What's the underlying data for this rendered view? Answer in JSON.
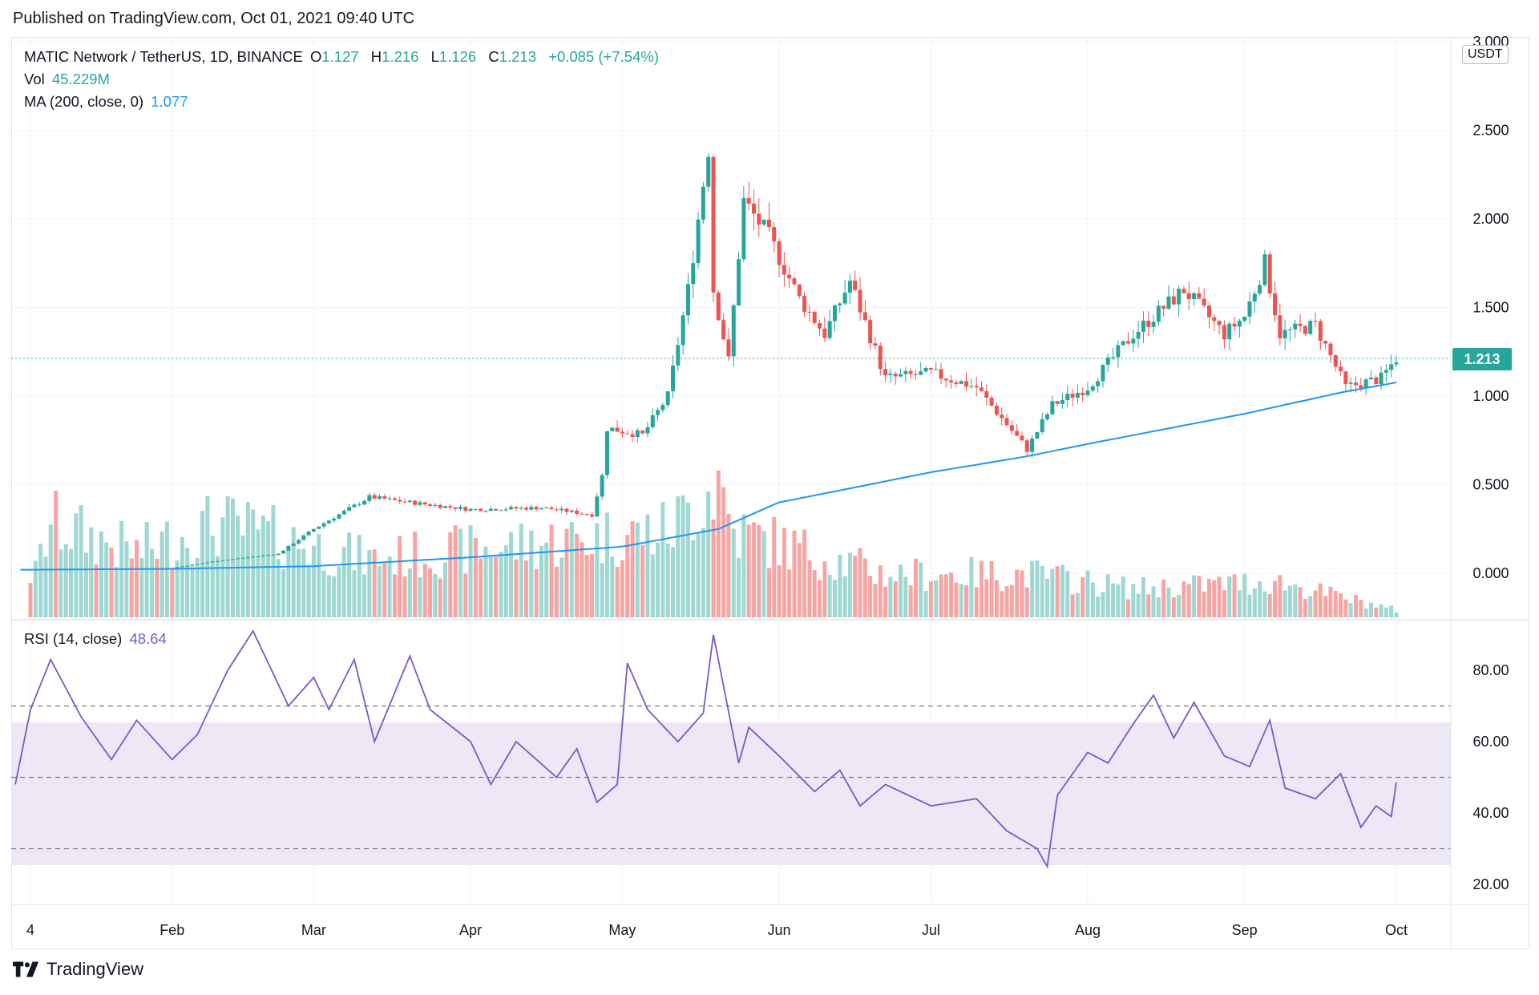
{
  "published": "Published on TradingView.com, Oct 01, 2021 09:40 UTC",
  "legend": {
    "symbol": "MATIC Network / TetherUS, 1D, BINANCE",
    "o_label": "O",
    "o_val": "1.127",
    "h_label": "H",
    "h_val": "1.216",
    "l_label": "L",
    "l_val": "1.126",
    "c_label": "C",
    "c_val": "1.213",
    "change": "+0.085 (+7.54%)",
    "vol_label": "Vol",
    "vol_val": "45.229M",
    "ma_label": "MA (200, close, 0)",
    "ma_val": "1.077",
    "rsi_label": "RSI (14, close)",
    "rsi_val": "48.64"
  },
  "price_axis": {
    "currency": "USDT",
    "ticks": [
      "3.000",
      "2.500",
      "2.000",
      "1.500",
      "1.000",
      "0.500",
      "0.000"
    ],
    "last_price": "1.213"
  },
  "rsi_axis": {
    "ticks": [
      "80.00",
      "60.00",
      "40.00",
      "20.00"
    ]
  },
  "time_axis": {
    "labels": [
      "4",
      "Feb",
      "Mar",
      "Apr",
      "May",
      "Jun",
      "Jul",
      "Aug",
      "Sep",
      "Oct"
    ]
  },
  "brand": "TradingView",
  "colors": {
    "up": "#26a69a",
    "down": "#ef5350",
    "ma": "#2196f3",
    "rsi": "#7e57c2",
    "rsi_band": "#ede7f6"
  },
  "chart_data": [
    {
      "type": "candlestick",
      "title": "MATIC Network / TetherUS, 1D, BINANCE",
      "ylim": [
        0,
        3.0
      ],
      "x_range": [
        "2021-01-04",
        "2021-10-01"
      ],
      "price_path": [
        {
          "date": "2021-01-04",
          "close": 0.02
        },
        {
          "date": "2021-02-01",
          "close": 0.03
        },
        {
          "date": "2021-02-10",
          "close": 0.07
        },
        {
          "date": "2021-02-22",
          "close": 0.11
        },
        {
          "date": "2021-03-01",
          "close": 0.25
        },
        {
          "date": "2021-03-12",
          "close": 0.43
        },
        {
          "date": "2021-03-20",
          "close": 0.4
        },
        {
          "date": "2021-04-01",
          "close": 0.36
        },
        {
          "date": "2021-04-15",
          "close": 0.37
        },
        {
          "date": "2021-04-25",
          "close": 0.33
        },
        {
          "date": "2021-04-27",
          "close": 0.55
        },
        {
          "date": "2021-04-28",
          "close": 0.82
        },
        {
          "date": "2021-05-05",
          "close": 0.78
        },
        {
          "date": "2021-05-10",
          "close": 1.0
        },
        {
          "date": "2021-05-14",
          "close": 1.6
        },
        {
          "date": "2021-05-18",
          "close": 2.4
        },
        {
          "date": "2021-05-19",
          "close": 1.6
        },
        {
          "date": "2021-05-22",
          "close": 1.2
        },
        {
          "date": "2021-05-25",
          "close": 2.1
        },
        {
          "date": "2021-05-30",
          "close": 1.9
        },
        {
          "date": "2021-06-05",
          "close": 1.55
        },
        {
          "date": "2021-06-10",
          "close": 1.35
        },
        {
          "date": "2021-06-15",
          "close": 1.65
        },
        {
          "date": "2021-06-22",
          "close": 1.1
        },
        {
          "date": "2021-07-01",
          "close": 1.13
        },
        {
          "date": "2021-07-10",
          "close": 1.05
        },
        {
          "date": "2021-07-20",
          "close": 0.7
        },
        {
          "date": "2021-07-25",
          "close": 0.95
        },
        {
          "date": "2021-08-01",
          "close": 1.05
        },
        {
          "date": "2021-08-10",
          "close": 1.35
        },
        {
          "date": "2021-08-14",
          "close": 1.45
        },
        {
          "date": "2021-08-20",
          "close": 1.6
        },
        {
          "date": "2021-08-28",
          "close": 1.35
        },
        {
          "date": "2021-09-01",
          "close": 1.45
        },
        {
          "date": "2021-09-05",
          "close": 1.75
        },
        {
          "date": "2021-09-08",
          "close": 1.35
        },
        {
          "date": "2021-09-15",
          "close": 1.4
        },
        {
          "date": "2021-09-21",
          "close": 1.05
        },
        {
          "date": "2021-09-28",
          "close": 1.1
        },
        {
          "date": "2021-10-01",
          "close": 1.213
        }
      ],
      "ma200": [
        {
          "date": "2021-01-04",
          "value": 0.02
        },
        {
          "date": "2021-02-01",
          "value": 0.025
        },
        {
          "date": "2021-03-01",
          "value": 0.04
        },
        {
          "date": "2021-04-01",
          "value": 0.09
        },
        {
          "date": "2021-05-01",
          "value": 0.15
        },
        {
          "date": "2021-05-20",
          "value": 0.25
        },
        {
          "date": "2021-06-01",
          "value": 0.4
        },
        {
          "date": "2021-07-01",
          "value": 0.57
        },
        {
          "date": "2021-07-20",
          "value": 0.66
        },
        {
          "date": "2021-08-01",
          "value": 0.73
        },
        {
          "date": "2021-09-01",
          "value": 0.9
        },
        {
          "date": "2021-09-20",
          "value": 1.02
        },
        {
          "date": "2021-10-01",
          "value": 1.077
        }
      ],
      "volume_relative": [
        {
          "date": "2021-01-05",
          "value": 0.3
        },
        {
          "date": "2021-01-08",
          "value": 0.65
        },
        {
          "date": "2021-01-25",
          "value": 0.45
        },
        {
          "date": "2021-02-10",
          "value": 0.65
        },
        {
          "date": "2021-03-12",
          "value": 0.4
        },
        {
          "date": "2021-04-25",
          "value": 0.55
        },
        {
          "date": "2021-05-10",
          "value": 0.6
        },
        {
          "date": "2021-05-20",
          "value": 0.95
        },
        {
          "date": "2021-05-23",
          "value": 0.6
        },
        {
          "date": "2021-06-22",
          "value": 0.3
        },
        {
          "date": "2021-07-21",
          "value": 0.3
        },
        {
          "date": "2021-08-10",
          "value": 0.2
        },
        {
          "date": "2021-09-07",
          "value": 0.25
        },
        {
          "date": "2021-10-01",
          "value": 0.05
        }
      ],
      "last_price": 1.213
    },
    {
      "type": "line",
      "title": "RSI (14, close)",
      "ylim": [
        20,
        100
      ],
      "bands": [
        30,
        50,
        70
      ],
      "points": [
        {
          "date": "2021-01-01",
          "value": 48
        },
        {
          "date": "2021-01-04",
          "value": 69
        },
        {
          "date": "2021-01-08",
          "value": 83
        },
        {
          "date": "2021-01-14",
          "value": 67
        },
        {
          "date": "2021-01-20",
          "value": 55
        },
        {
          "date": "2021-01-25",
          "value": 66
        },
        {
          "date": "2021-02-01",
          "value": 55
        },
        {
          "date": "2021-02-06",
          "value": 62
        },
        {
          "date": "2021-02-12",
          "value": 80
        },
        {
          "date": "2021-02-17",
          "value": 91
        },
        {
          "date": "2021-02-24",
          "value": 70
        },
        {
          "date": "2021-03-01",
          "value": 78
        },
        {
          "date": "2021-03-04",
          "value": 69
        },
        {
          "date": "2021-03-09",
          "value": 83
        },
        {
          "date": "2021-03-13",
          "value": 60
        },
        {
          "date": "2021-03-20",
          "value": 84
        },
        {
          "date": "2021-03-24",
          "value": 69
        },
        {
          "date": "2021-04-01",
          "value": 60
        },
        {
          "date": "2021-04-05",
          "value": 48
        },
        {
          "date": "2021-04-10",
          "value": 60
        },
        {
          "date": "2021-04-18",
          "value": 50
        },
        {
          "date": "2021-04-22",
          "value": 58
        },
        {
          "date": "2021-04-26",
          "value": 43
        },
        {
          "date": "2021-04-30",
          "value": 48
        },
        {
          "date": "2021-05-02",
          "value": 82
        },
        {
          "date": "2021-05-06",
          "value": 69
        },
        {
          "date": "2021-05-12",
          "value": 60
        },
        {
          "date": "2021-05-17",
          "value": 68
        },
        {
          "date": "2021-05-19",
          "value": 90
        },
        {
          "date": "2021-05-24",
          "value": 54
        },
        {
          "date": "2021-05-26",
          "value": 64
        },
        {
          "date": "2021-06-01",
          "value": 56
        },
        {
          "date": "2021-06-08",
          "value": 46
        },
        {
          "date": "2021-06-13",
          "value": 52
        },
        {
          "date": "2021-06-17",
          "value": 42
        },
        {
          "date": "2021-06-22",
          "value": 48
        },
        {
          "date": "2021-07-01",
          "value": 42
        },
        {
          "date": "2021-07-10",
          "value": 44
        },
        {
          "date": "2021-07-16",
          "value": 35
        },
        {
          "date": "2021-07-22",
          "value": 30
        },
        {
          "date": "2021-07-24",
          "value": 25
        },
        {
          "date": "2021-07-26",
          "value": 45
        },
        {
          "date": "2021-08-01",
          "value": 57
        },
        {
          "date": "2021-08-05",
          "value": 54
        },
        {
          "date": "2021-08-10",
          "value": 65
        },
        {
          "date": "2021-08-14",
          "value": 73
        },
        {
          "date": "2021-08-18",
          "value": 61
        },
        {
          "date": "2021-08-22",
          "value": 71
        },
        {
          "date": "2021-08-28",
          "value": 56
        },
        {
          "date": "2021-09-02",
          "value": 53
        },
        {
          "date": "2021-09-06",
          "value": 66
        },
        {
          "date": "2021-09-09",
          "value": 47
        },
        {
          "date": "2021-09-15",
          "value": 44
        },
        {
          "date": "2021-09-20",
          "value": 51
        },
        {
          "date": "2021-09-24",
          "value": 36
        },
        {
          "date": "2021-09-27",
          "value": 42
        },
        {
          "date": "2021-09-30",
          "value": 39
        },
        {
          "date": "2021-10-01",
          "value": 48.64
        }
      ],
      "last_value": 48.64
    }
  ]
}
